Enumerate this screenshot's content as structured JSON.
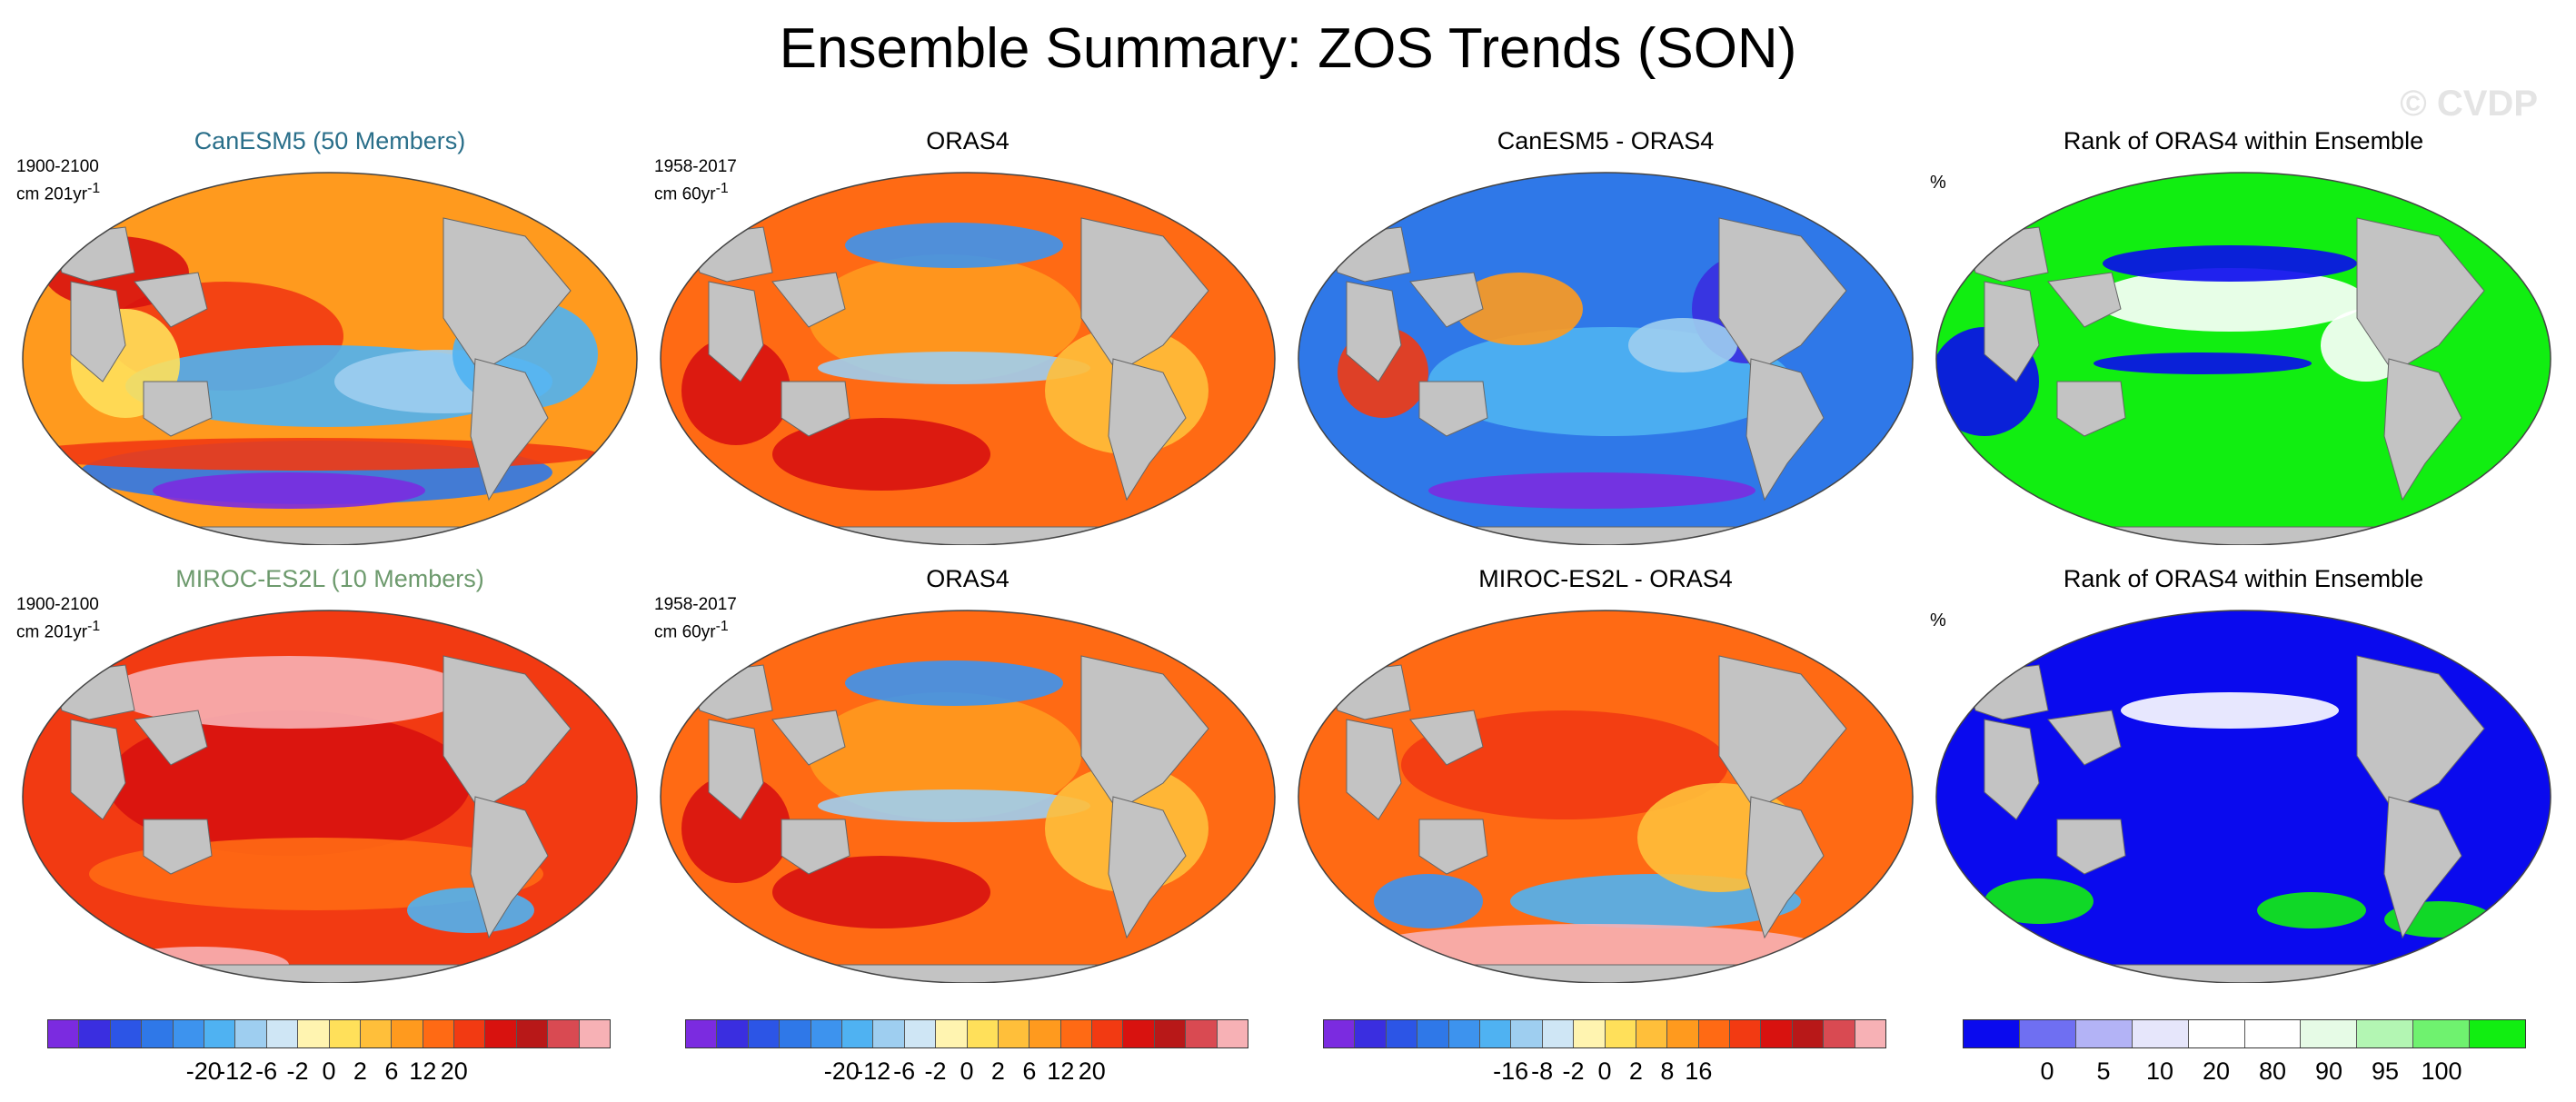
{
  "figure": {
    "title": "Ensemble Summary: ZOS Trends (SON)",
    "watermark": "© CVDP"
  },
  "rows": [
    {
      "ensemble_title": "CanESM5 (50 Members)",
      "ensemble_color": "#2a6f8a",
      "ensemble_period": "1900-2100",
      "ensemble_units_base": "cm 201yr",
      "obs_title": "ORAS4",
      "obs_period": "1958-2017",
      "obs_units_base": "cm 60yr",
      "diff_title": "CanESM5 - ORAS4",
      "rank_title": "Rank of ORAS4 within Ensemble",
      "rank_units": "%"
    },
    {
      "ensemble_title": "MIROC-ES2L (10 Members)",
      "ensemble_color": "#6d9a6d",
      "ensemble_period": "1900-2100",
      "ensemble_units_base": "cm 201yr",
      "obs_title": "ORAS4",
      "obs_period": "1958-2017",
      "obs_units_base": "cm 60yr",
      "diff_title": "MIROC-ES2L - ORAS4",
      "rank_title": "Rank of ORAS4 within Ensemble",
      "rank_units": "%"
    }
  ],
  "units_exponent": "-1",
  "colorbars": [
    {
      "name": "trend",
      "colors": [
        "#7b2be0",
        "#3a2ee0",
        "#2c55e6",
        "#2f78e8",
        "#3d93ee",
        "#4fb2f2",
        "#9ecef0",
        "#cfe6f5",
        "#fff4b0",
        "#ffe05a",
        "#ffbf3a",
        "#ff9a1e",
        "#ff6a14",
        "#f23a12",
        "#d8120f",
        "#b81818",
        "#d94a52",
        "#f7b1b5"
      ],
      "labels": [
        "-20",
        "-12",
        "-6",
        "-2",
        "0",
        "2",
        "6",
        "12",
        "20"
      ]
    },
    {
      "name": "trend-obs",
      "colors": [
        "#7b2be0",
        "#3a2ee0",
        "#2c55e6",
        "#2f78e8",
        "#3d93ee",
        "#4fb2f2",
        "#9ecef0",
        "#cfe6f5",
        "#fff4b0",
        "#ffe05a",
        "#ffbf3a",
        "#ff9a1e",
        "#ff6a14",
        "#f23a12",
        "#d8120f",
        "#b81818",
        "#d94a52",
        "#f7b1b5"
      ],
      "labels": [
        "-20",
        "-12",
        "-6",
        "-2",
        "0",
        "2",
        "6",
        "12",
        "20"
      ]
    },
    {
      "name": "difference",
      "colors": [
        "#7b2be0",
        "#3a2ee0",
        "#2c55e6",
        "#2f78e8",
        "#3d93ee",
        "#4fb2f2",
        "#9ecef0",
        "#cfe6f5",
        "#fff4b0",
        "#ffe05a",
        "#ffbf3a",
        "#ff9a1e",
        "#ff6a14",
        "#f23a12",
        "#d8120f",
        "#b81818",
        "#d94a52",
        "#f7b1b5"
      ],
      "labels": [
        "-16",
        "-8",
        "-2",
        "0",
        "2",
        "8",
        "16"
      ]
    },
    {
      "name": "rank",
      "colors": [
        "#0a0aee",
        "#6f6ff2",
        "#b3b3f6",
        "#e6e6fb",
        "#ffffff",
        "#ffffff",
        "#e6fbe6",
        "#b3f6b3",
        "#6ff26f",
        "#11ee11"
      ],
      "labels": [
        "0",
        "5",
        "10",
        "20",
        "80",
        "90",
        "95",
        "100"
      ]
    }
  ]
}
